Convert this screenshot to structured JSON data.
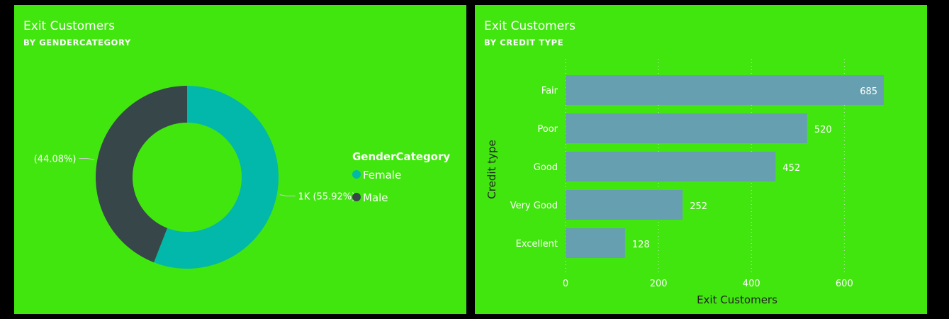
{
  "colors": {
    "panel_bg": "#42e60f",
    "page_bg": "#000000",
    "female": "#01b8aa",
    "male": "#374649",
    "bar": "#66a0b0",
    "text": "#ffffff",
    "dark_text": "#222222"
  },
  "chart_data": [
    {
      "type": "pie",
      "variant": "donut",
      "title": "Exit Customers",
      "subtitle": "BY GENDERCATEGORY",
      "legend": {
        "title": "GenderCategory",
        "placement": "right",
        "entries": [
          "Female",
          "Male"
        ]
      },
      "slices": [
        {
          "name": "Female",
          "percent": 55.92,
          "label": "1K (55.92%)",
          "color": "#01b8aa"
        },
        {
          "name": "Male",
          "percent": 44.08,
          "label": "(44.08%)",
          "color": "#374649"
        }
      ]
    },
    {
      "type": "bar",
      "orientation": "horizontal",
      "title": "Exit Customers",
      "subtitle": "BY CREDIT TYPE",
      "xlabel": "Exit Customers",
      "ylabel": "Credit type",
      "categories": [
        "Fair",
        "Poor",
        "Good",
        "Very Good",
        "Excellent"
      ],
      "values": [
        685,
        520,
        452,
        252,
        128
      ],
      "data_labels": [
        "685",
        "520",
        "452",
        "252",
        "128"
      ],
      "xlim": [
        0,
        720
      ],
      "xticks": [
        0,
        200,
        400,
        600
      ],
      "xtick_labels": [
        "0",
        "200",
        "400",
        "600"
      ],
      "grid": "vertical dotted",
      "bar_color": "#66a0b0"
    }
  ]
}
